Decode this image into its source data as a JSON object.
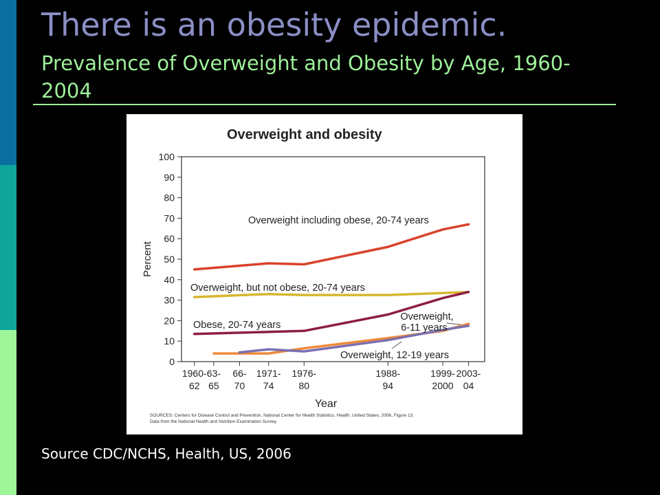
{
  "slide": {
    "title": "There is an obesity epidemic.",
    "subtitle": "Prevalence of Overweight and Obesity by Age, 1960-2004",
    "source": "Source CDC/NCHS, Health, US, 2006",
    "accent_colors": {
      "title": "#8b8fc6",
      "subtitle": "#9ef09a",
      "bar_top": "#0a6fa0",
      "bar_mid": "#0fa59a",
      "bar_bottom": "#9ef59a"
    }
  },
  "chart_data": {
    "type": "line",
    "title": "Overweight and obesity",
    "xlabel": "Year",
    "ylabel": "Percent",
    "ylim": [
      0,
      100
    ],
    "yticks": [
      0,
      10,
      20,
      30,
      40,
      50,
      60,
      70,
      80,
      90,
      100
    ],
    "categories": [
      "1960-\n62",
      "63-\n65",
      "66-\n70",
      "1971-\n74",
      "1976-\n80",
      "1988-\n94",
      "1999-\n2000",
      "2003-\n04"
    ],
    "x": [
      1961,
      1964,
      1968,
      1972.5,
      1978,
      1991,
      1999.5,
      2003.5
    ],
    "sources_note": "SOURCES: Centers for Disease Control and Prevention, National Center for Health Statistics, Health, United States, 2006, Figure 13. Data from the National Health and Nutrition Examination Survey.",
    "series": [
      {
        "name": "Overweight including obese, 20-74 years",
        "color": "#d9412b",
        "x": [
          1961,
          1972.5,
          1978,
          1991,
          1999.5,
          2003.5
        ],
        "values": [
          45,
          48,
          47.5,
          56,
          64.5,
          67
        ]
      },
      {
        "name": "Overweight, but not obese, 20-74 years",
        "color": "#d6b630",
        "x": [
          1961,
          1972.5,
          1978,
          1991,
          1999.5,
          2003.5
        ],
        "values": [
          31.5,
          33,
          32.5,
          32.5,
          33.5,
          34
        ]
      },
      {
        "name": "Obese, 20-74 years",
        "color": "#8c1c48",
        "x": [
          1961,
          1972.5,
          1978,
          1991,
          1999.5,
          2003.5
        ],
        "values": [
          13.5,
          14.5,
          15,
          23,
          31,
          34
        ]
      },
      {
        "name": "Overweight, 6-11 years",
        "color": "#ef8a3a",
        "x": [
          1964,
          1972.5,
          1978,
          1991,
          1999.5,
          2003.5
        ],
        "values": [
          4,
          4,
          6.5,
          11.5,
          15,
          18.5
        ]
      },
      {
        "name": "Overweight, 12-19 years",
        "color": "#7a6fb0",
        "x": [
          1968,
          1972.5,
          1978,
          1991,
          1999.5,
          2003.5
        ],
        "values": [
          4.5,
          6,
          5,
          10.5,
          15.5,
          17.5
        ]
      }
    ],
    "annotations": [
      {
        "text": "Overweight including obese, 20-74 years"
      },
      {
        "text": "Overweight, but not obese, 20-74 years"
      },
      {
        "text": "Obese, 20-74 years"
      },
      {
        "text": "Overweight,",
        "text2": "6-11 years"
      },
      {
        "text": "Overweight, 12-19 years"
      }
    ]
  }
}
